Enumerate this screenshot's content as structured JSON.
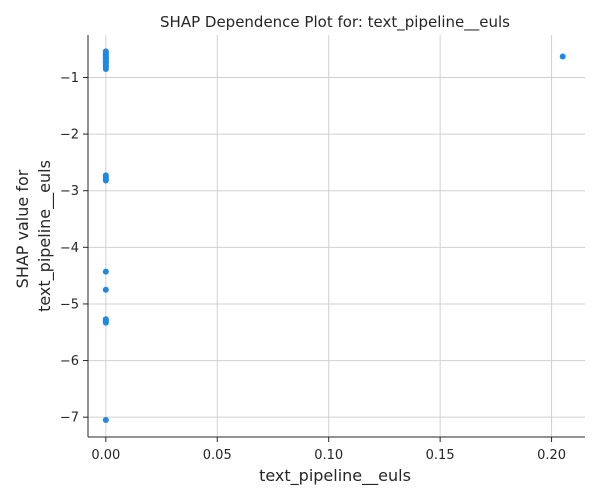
{
  "chart_data": {
    "type": "scatter",
    "title": "SHAP Dependence Plot for: text_pipeline__euls",
    "xlabel": "text_pipeline__euls",
    "ylabel_lines": [
      "SHAP value for",
      "text_pipeline__euls"
    ],
    "xlim": [
      -0.008,
      0.215
    ],
    "ylim": [
      -7.35,
      -0.25
    ],
    "xticks": [
      0.0,
      0.05,
      0.1,
      0.15,
      0.2
    ],
    "xtick_labels": [
      "0.00",
      "0.05",
      "0.10",
      "0.15",
      "0.20"
    ],
    "yticks": [
      -1,
      -2,
      -3,
      -4,
      -5,
      -6,
      -7
    ],
    "ytick_labels": [
      "−1",
      "−2",
      "−3",
      "−4",
      "−5",
      "−6",
      "−7"
    ],
    "grid": true,
    "legend": "none",
    "point_color": "#1e88e5",
    "series": [
      {
        "x": [
          0,
          0,
          0,
          0,
          0,
          0,
          0,
          0,
          0,
          0,
          0,
          0,
          0,
          0,
          0,
          0,
          0,
          0,
          0,
          0,
          0,
          0,
          0,
          0,
          0,
          0,
          0.205
        ],
        "y": [
          -0.54,
          -0.56,
          -0.59,
          -0.62,
          -0.65,
          -0.68,
          -0.71,
          -0.74,
          -0.76,
          -0.79,
          -0.82,
          -0.85,
          -2.73,
          -2.76,
          -2.79,
          -2.82,
          -4.43,
          -4.75,
          -5.27,
          -5.29,
          -5.31,
          -5.33,
          -7.05,
          -0.6,
          -0.66,
          -0.72,
          -0.63
        ]
      }
    ]
  }
}
